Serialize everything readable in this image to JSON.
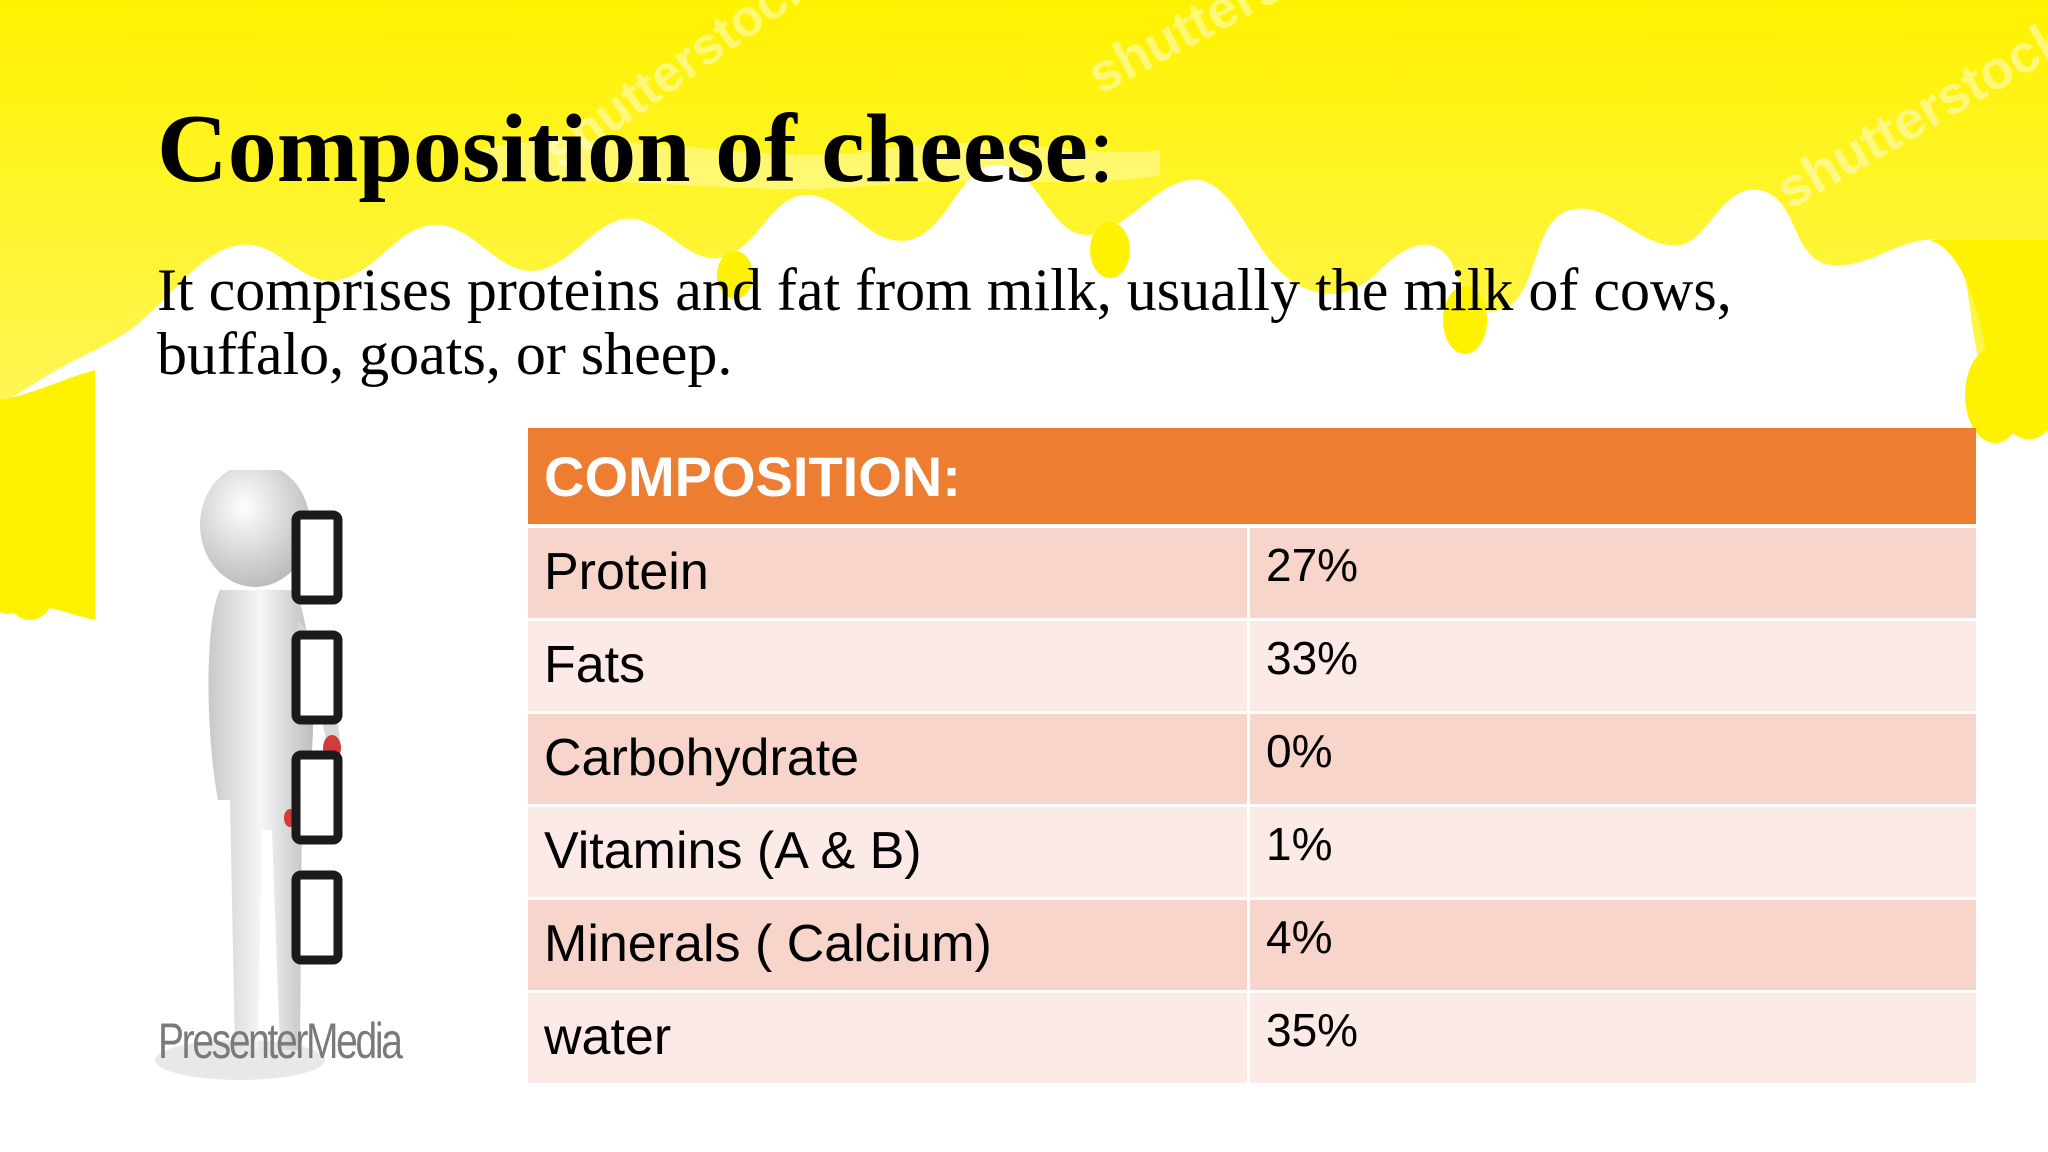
{
  "slide": {
    "title": "Composition of cheese",
    "title_colon": ":",
    "subtitle": "It comprises proteins and fat from milk, usually the milk of cows, buffalo, goats, or sheep.",
    "watermarks": [
      "shutterstock",
      "shutterstock",
      "shutterstock"
    ],
    "logo_text": "PresenterMedia",
    "colors": {
      "background_yellow": "#fff200",
      "table_header": "#ed7d31",
      "row_dark": "#f8d5cb",
      "row_light": "#fbeae6"
    }
  },
  "table": {
    "header": "COMPOSITION:",
    "rows": [
      {
        "name": "Protein",
        "value": "27%"
      },
      {
        "name": "Fats",
        "value": "33%"
      },
      {
        "name": "Carbohydrate",
        "value": "0%"
      },
      {
        "name": "Vitamins (A & B)",
        "value": "1%"
      },
      {
        "name": "Minerals ( Calcium)",
        "value": "4%"
      },
      {
        "name": "water",
        "value": "35%"
      }
    ]
  }
}
